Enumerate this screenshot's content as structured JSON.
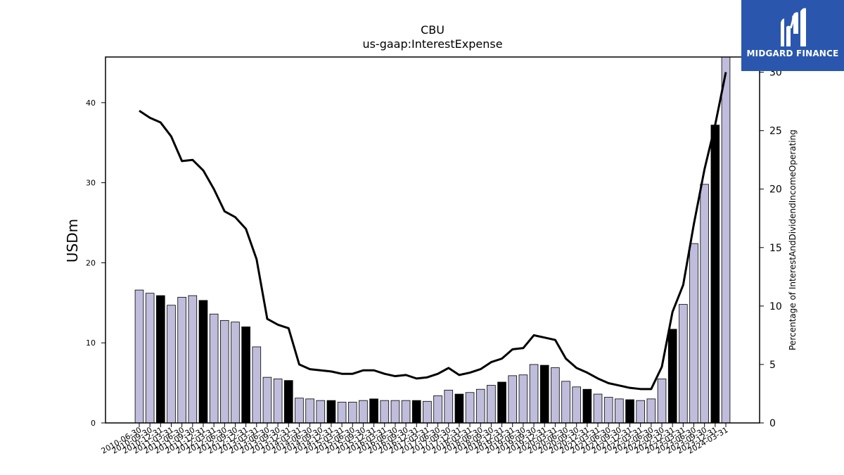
{
  "logo": {
    "text": "MIDGARD FINANCE"
  },
  "colors": {
    "bar_regular": "#bfbddb",
    "bar_highlight": "#000000",
    "line": "#000000",
    "logo_bg": "#2a57ad"
  },
  "chart_data": {
    "type": "bar",
    "title": "CBU",
    "subtitle": "us-gaap:InterestExpense",
    "ylabel": "USDm",
    "y2label": "Percentage of InterestAndDividendIncomeOperating",
    "ylim": [
      0,
      45.7
    ],
    "y2lim": [
      0,
      31.3
    ],
    "yticks": [
      0,
      10,
      20,
      30,
      40
    ],
    "y2ticks": [
      0,
      5,
      10,
      15,
      20,
      25,
      30
    ],
    "xtick_labels": [
      "2010-06-30",
      "2010-09-30",
      "2010-12-31",
      "2011-03-31",
      "2011-06-30",
      "2011-09-30",
      "2011-12-31",
      "2012-03-31",
      "2012-06-30",
      "2012-09-30",
      "2012-12-31",
      "2013-03-31",
      "2013-06-30",
      "2013-09-30",
      "2013-12-31",
      "2014-03-31",
      "2014-06-30",
      "2014-09-30",
      "2014-12-31",
      "2015-03-31",
      "2015-06-30",
      "2015-09-30",
      "2015-12-31",
      "2016-03-31",
      "2016-06-30",
      "2016-09-30",
      "2016-12-31",
      "2017-03-31",
      "2017-06-30",
      "2017-09-30",
      "2017-12-31",
      "2018-03-31",
      "2018-06-30",
      "2018-09-30",
      "2018-12-31",
      "2019-03-31",
      "2019-06-30",
      "2019-09-30",
      "2019-12-31",
      "2020-03-31",
      "2020-06-30",
      "2020-09-30",
      "2020-12-31",
      "2021-03-31",
      "2021-06-30",
      "2021-09-30",
      "2021-12-31",
      "2022-03-31",
      "2022-06-30",
      "2022-09-30",
      "2022-12-31",
      "2023-03-31",
      "2023-06-30",
      "2023-09-30",
      "2023-12-31",
      "2024-03-31"
    ],
    "series": [
      {
        "kind": "bar",
        "values": [
          16.6,
          16.2,
          15.9,
          14.7,
          15.7,
          15.9,
          15.3,
          13.6,
          12.8,
          12.6,
          12.0,
          9.5,
          5.7,
          5.5,
          5.3,
          3.1,
          3.0,
          2.8,
          2.8,
          2.6,
          2.6,
          2.8,
          3.0,
          2.8,
          2.8,
          2.8,
          2.8,
          2.7,
          3.4,
          4.1,
          3.6,
          3.8,
          4.2,
          4.7,
          5.1,
          5.9,
          6.0,
          7.3,
          7.2,
          6.9,
          5.2,
          4.5,
          4.2,
          3.6,
          3.2,
          3.0,
          2.9,
          2.8,
          3.0,
          5.5,
          11.7,
          14.8,
          22.4,
          29.8,
          37.2,
          46.0
        ],
        "highlight": [
          false,
          false,
          true,
          false,
          false,
          false,
          true,
          false,
          false,
          false,
          true,
          false,
          false,
          false,
          true,
          false,
          false,
          false,
          true,
          false,
          false,
          false,
          true,
          false,
          false,
          false,
          true,
          false,
          false,
          false,
          true,
          false,
          false,
          false,
          true,
          false,
          false,
          false,
          true,
          false,
          false,
          false,
          true,
          false,
          false,
          false,
          true,
          false,
          false,
          false,
          true,
          false,
          false,
          false,
          true,
          false
        ]
      },
      {
        "kind": "line",
        "axis": "right",
        "values": [
          26.7,
          26.1,
          25.7,
          24.5,
          22.4,
          22.5,
          21.6,
          20.0,
          18.1,
          17.6,
          16.6,
          14.0,
          8.9,
          8.4,
          8.1,
          5.0,
          4.6,
          4.5,
          4.4,
          4.2,
          4.2,
          4.5,
          4.5,
          4.2,
          4.0,
          4.1,
          3.8,
          3.9,
          4.2,
          4.7,
          4.1,
          4.3,
          4.6,
          5.2,
          5.5,
          6.3,
          6.4,
          7.5,
          7.3,
          7.1,
          5.5,
          4.7,
          4.3,
          3.8,
          3.4,
          3.2,
          3.0,
          2.9,
          2.9,
          4.8,
          9.5,
          11.8,
          17.0,
          21.7,
          25.5,
          30.0
        ]
      }
    ]
  }
}
